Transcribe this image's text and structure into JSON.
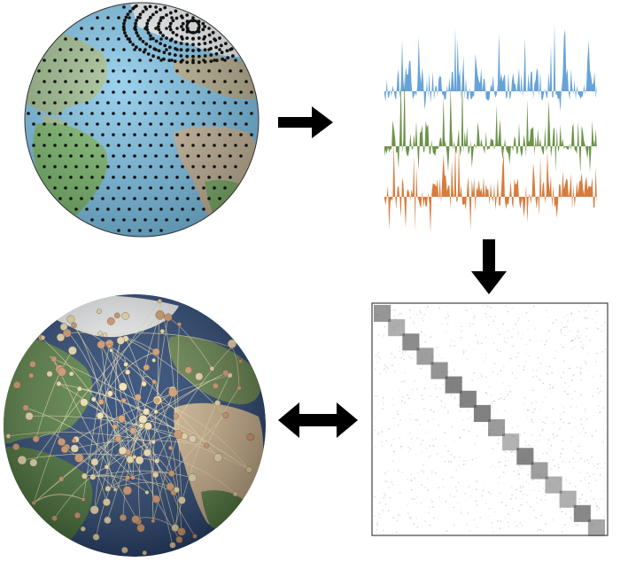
{
  "panels": {
    "globe_grid": {
      "icon": "globe-with-grid-points-icon",
      "colors": {
        "ocean": "#7cc3e8",
        "land": "#8fbf7a",
        "land_dry": "#c7b79a",
        "ice": "#eef2f3",
        "grid_point": "#111111"
      }
    },
    "time_series": {
      "icon": "stacked-time-series-icon",
      "colors": {
        "series_1": "#5a9bd5",
        "series_2": "#5f8a3a",
        "series_3": "#d2712e"
      }
    },
    "correlation_matrix": {
      "icon": "block-diagonal-matrix-icon",
      "colors": {
        "frame": "#444444",
        "block": "#555555",
        "noise": "#9a9a9a"
      }
    },
    "network_globe": {
      "icon": "globe-network-icon",
      "colors": {
        "ocean": "#1c3a6b",
        "land": "#4f7a3a",
        "desert": "#d2b48c",
        "ice": "#f2f4f5",
        "node": "#d99a6a",
        "edge": "#f3e3b0"
      }
    }
  },
  "arrows": {
    "color": "#000000",
    "right": "arrow-right-icon",
    "down": "arrow-down-icon",
    "both": "arrow-left-right-icon"
  }
}
